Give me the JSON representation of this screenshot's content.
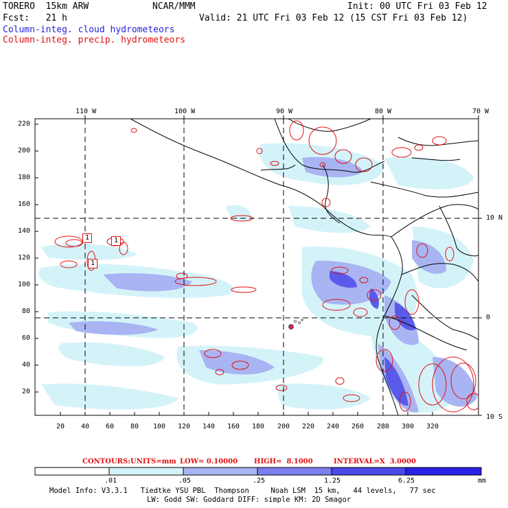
{
  "header": {
    "model": "TORERO  15km ARW",
    "center": "NCAR/MMM",
    "init": "Init: 00 UTC Fri 03 Feb 12",
    "fcst": "Fcst:   21 h",
    "valid": "Valid: 21 UTC Fri 03 Feb 12 (15 CST Fri 03 Feb 12)",
    "field_cloud": "Column-integ. cloud hydrometeors",
    "field_precip": "Column-integ. precip. hydrometeors"
  },
  "axes": {
    "top_lon_labels": [
      "110 W",
      "100 W",
      "90 W",
      "80 W",
      "70 W"
    ],
    "right_lat_labels": [
      "10 N",
      "0",
      "10 S"
    ],
    "left_ticks": [
      "220",
      "200",
      "180",
      "160",
      "140",
      "120",
      "100",
      "80",
      "60",
      "40",
      "20"
    ],
    "bottom_ticks": [
      "20",
      "40",
      "60",
      "80",
      "100",
      "120",
      "140",
      "160",
      "180",
      "200",
      "220",
      "240",
      "260",
      "280",
      "300",
      "320"
    ]
  },
  "contour_labels": [
    "1",
    "1",
    "1"
  ],
  "contour_info": {
    "contours_label": "CONTOURS:",
    "units": "UNITS=mm",
    "low": "LOW= 0.10000",
    "high": "HIGH=  8.1000",
    "interval": "INTERVAL=X  3.0000"
  },
  "colorbar": {
    "levels": [
      ".01",
      ".05",
      ".25",
      "1.25",
      "6.25"
    ],
    "unit": "mm",
    "colors": [
      "#ffffff",
      "#d3f3f9",
      "#a9b4f2",
      "#7c7ef0",
      "#4a4ae8",
      "#2a20e8"
    ]
  },
  "model_info": {
    "line1": "Model Info: V3.3.1   Tiedtke YSU PBL  Thompson     Noah LSM  15 km,   44 levels,   77 sec",
    "line2": "LW: Godd SW: Goddard DIFF: simple KM: 2D Smagor"
  }
}
